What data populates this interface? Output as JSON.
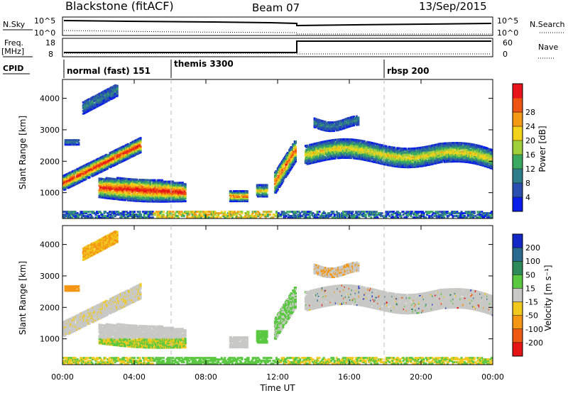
{
  "header": {
    "title": "Blackstone (fitACF)",
    "beam": "Beam 07",
    "date": "13/Sep/2015"
  },
  "panels": {
    "nsky": {
      "left_label": "N.Sky",
      "right_label": "N.Search",
      "ticks": [
        "10^5",
        "10^0"
      ]
    },
    "freq": {
      "left_label_1": "Freq.",
      "left_label_2": "[MHz]",
      "left_ticks": [
        "18",
        "8"
      ],
      "right_label": "Nave",
      "right_ticks": [
        "60",
        "0"
      ]
    },
    "cpid": {
      "label": "CPID",
      "segments": [
        "normal (fast) 151",
        "themis 3300",
        "rbsp 200"
      ]
    },
    "power": {
      "colorbar_label": "Power [dB]",
      "colorbar_ticks": [
        "4",
        "8",
        "12",
        "16",
        "20",
        "24",
        "28"
      ],
      "colors": [
        "#0a1eea",
        "#2a4fb0",
        "#2e7d8a",
        "#3aa860",
        "#9fcf3a",
        "#f2d21a",
        "#f59a14",
        "#ee5512",
        "#e8141a"
      ]
    },
    "velocity": {
      "colorbar_label": "Velocity [m s⁻¹]",
      "colorbar_ticks": [
        "200",
        "100",
        "50",
        "15",
        "-15",
        "-50",
        "-100",
        "-200"
      ],
      "colors": [
        "#1428c8",
        "#2a6a90",
        "#2e8a58",
        "#5ac840",
        "#c8c8c4",
        "#f0c81e",
        "#f59614",
        "#ee5a12",
        "#e61414"
      ]
    }
  },
  "axes": {
    "ylabel": "Slant Range [km]",
    "xlabel": "Time UT",
    "y_ticks": [
      "1000",
      "2000",
      "3000",
      "4000"
    ],
    "x_ticks": [
      "00:00",
      "04:00",
      "08:00",
      "12:00",
      "16:00",
      "20:00",
      "00:00"
    ]
  },
  "chart_data": {
    "type": "heatmap",
    "x_range_hours": [
      0,
      24
    ],
    "y_range_km": [
      180,
      4600
    ],
    "cpid_changes_hours": [
      0,
      6,
      18
    ],
    "nsky_step_hour": 13,
    "power_echo_regions": [
      {
        "t0": 0.0,
        "t1": 4.2,
        "r0": 1100,
        "r1": 2700,
        "note": "rising band"
      },
      {
        "t0": 1.2,
        "t1": 3.0,
        "r0": 3400,
        "r1": 4400
      },
      {
        "t0": 2.0,
        "t1": 6.8,
        "r0": 800,
        "r1": 1650
      },
      {
        "t0": 9.3,
        "t1": 10.3,
        "r0": 700,
        "r1": 1050
      },
      {
        "t0": 10.8,
        "t1": 11.4,
        "r0": 850,
        "r1": 1250
      },
      {
        "t0": 11.8,
        "t1": 13.0,
        "r0": 1100,
        "r1": 2600
      },
      {
        "t0": 13.5,
        "t1": 24.0,
        "r0": 1800,
        "r1": 2600,
        "note": "wavy band"
      }
    ]
  }
}
